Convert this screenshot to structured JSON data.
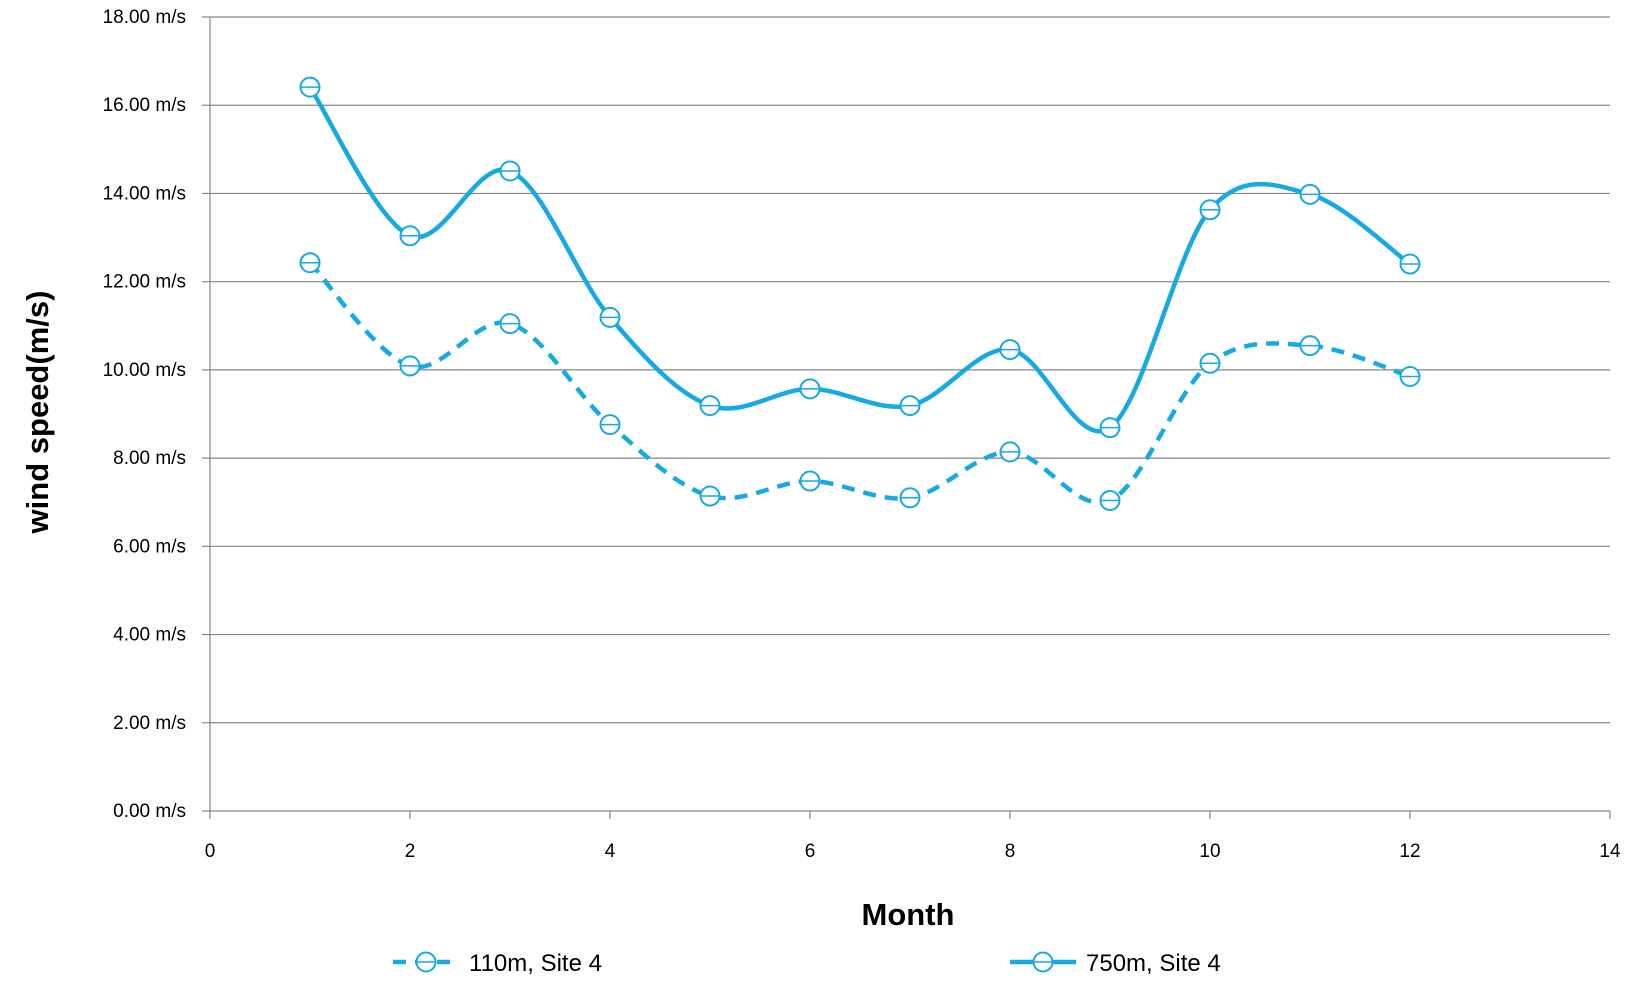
{
  "chart_data": {
    "type": "line",
    "title": "",
    "xlabel": "Month",
    "ylabel": "wind speed(m/s)",
    "xlim": [
      0,
      14
    ],
    "xticks": [
      0,
      2,
      4,
      6,
      8,
      10,
      12,
      14
    ],
    "xtick_labels": [
      "0",
      "2",
      "4",
      "6",
      "8",
      "10",
      "12",
      "14"
    ],
    "ylim": [
      0,
      18
    ],
    "yticks": [
      0,
      2,
      4,
      6,
      8,
      10,
      12,
      14,
      16,
      18
    ],
    "ytick_labels": [
      "0.00 m/s",
      "2.00 m/s",
      "4.00 m/s",
      "6.00 m/s",
      "8.00 m/s",
      "10.00 m/s",
      "12.00 m/s",
      "14.00 m/s",
      "16.00 m/s",
      "18.00 m/s"
    ],
    "grid": "horizontal",
    "smooth": true,
    "legend_position": "bottom",
    "x": [
      1,
      2,
      3,
      4,
      5,
      6,
      7,
      8,
      9,
      10,
      11,
      12
    ],
    "series": [
      {
        "name": "110m, Site 4",
        "line_style": "dashed",
        "marker": "open-circle",
        "color": "#17a9e1",
        "values": [
          12.43,
          10.09,
          11.05,
          8.76,
          7.14,
          7.48,
          7.1,
          8.14,
          7.04,
          10.15,
          10.55,
          9.85
        ]
      },
      {
        "name": "750m, Site 4",
        "line_style": "solid",
        "marker": "open-circle",
        "color": "#17a9e1",
        "values": [
          16.41,
          13.04,
          14.51,
          11.19,
          9.19,
          9.57,
          9.19,
          10.46,
          8.69,
          13.63,
          13.98,
          12.4
        ]
      }
    ]
  }
}
